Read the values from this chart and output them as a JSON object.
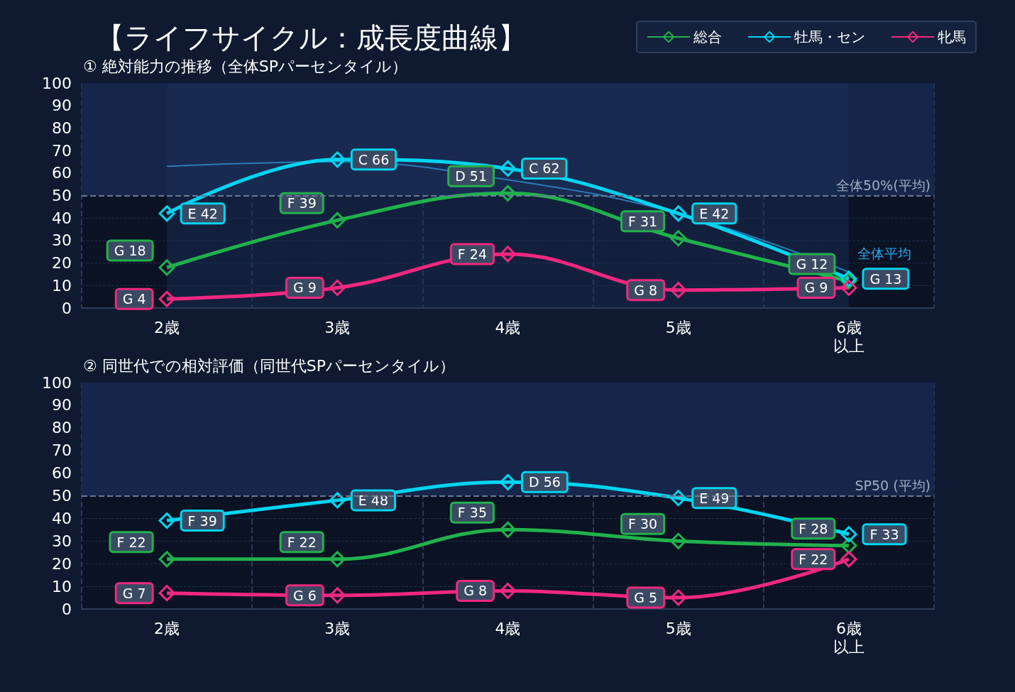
{
  "chart_data": [
    {
      "type": "line",
      "title": "【ライフサイクル：成長度曲線】",
      "subtitle": "① 絶対能力の推移（全体SPパーセンタイル）",
      "categories": [
        "2歳",
        "3歳",
        "4歳",
        "5歳",
        "6歳以上"
      ],
      "ylim": [
        0,
        100
      ],
      "yticks": [
        0,
        10,
        20,
        30,
        40,
        50,
        60,
        70,
        80,
        90,
        100
      ],
      "grid": true,
      "legend": "top right",
      "marker": "diamond",
      "line_style": "solid",
      "series": [
        {
          "name": "総合",
          "color": "#22b14c",
          "values": [
            18,
            39,
            51,
            31,
            12
          ],
          "value_labels": [
            "G 18",
            "F 39",
            "D 51",
            "F 31",
            "G 12"
          ]
        },
        {
          "name": "牡馬・セン",
          "color": "#00d4f0",
          "values": [
            42,
            66,
            62,
            42,
            13
          ],
          "value_labels": [
            "E 42",
            "C 66",
            "C 62",
            "E 42",
            "G 13"
          ]
        },
        {
          "name": "牝馬",
          "color": "#f0287f",
          "values": [
            4,
            9,
            24,
            8,
            9
          ],
          "value_labels": [
            "G 4",
            "G 9",
            "F 24",
            "G 8",
            "G 9"
          ]
        },
        {
          "name": "全体平均",
          "color": "#2a7ab8",
          "marker": "none",
          "values": [
            63,
            65,
            57,
            42,
            16
          ]
        }
      ],
      "ref_lines": [
        {
          "axis": "y",
          "value": 50,
          "label": "全体50%(平均)",
          "color": "#6a7a94",
          "line_style": "dashed"
        }
      ],
      "bands": [
        {
          "axis": "y",
          "from": 50,
          "to": 100,
          "color": "#16264a"
        },
        {
          "axis": "x",
          "from": "2歳",
          "to": "6歳以上",
          "color": "#1a2d55"
        }
      ]
    },
    {
      "type": "line",
      "subtitle": "② 同世代での相対評価（同世代SPパーセンタイル）",
      "categories": [
        "2歳",
        "3歳",
        "4歳",
        "5歳",
        "6歳以上"
      ],
      "ylim": [
        0,
        100
      ],
      "yticks": [
        0,
        10,
        20,
        30,
        40,
        50,
        60,
        70,
        80,
        90,
        100
      ],
      "grid": true,
      "marker": "diamond",
      "line_style": "solid",
      "series": [
        {
          "color": "#22b14c",
          "values": [
            22,
            22,
            35,
            30,
            28
          ],
          "value_labels": [
            "F 22",
            "F 22",
            "F 35",
            "F 30",
            "F 28"
          ]
        },
        {
          "color": "#00d4f0",
          "values": [
            39,
            48,
            56,
            49,
            33
          ],
          "value_labels": [
            "F 39",
            "E 48",
            "D 56",
            "E 49",
            "F 33"
          ]
        },
        {
          "color": "#f0287f",
          "values": [
            7,
            6,
            8,
            5,
            22
          ],
          "value_labels": [
            "G 7",
            "G 6",
            "G 8",
            "G 5",
            "F 22"
          ]
        }
      ],
      "ref_lines": [
        {
          "axis": "y",
          "value": 50,
          "label": "SP50 (平均)",
          "color": "#6a7a94",
          "line_style": "dashed"
        }
      ],
      "bands": [
        {
          "axis": "y",
          "from": 50,
          "to": 100,
          "color": "#16264a"
        }
      ]
    }
  ]
}
